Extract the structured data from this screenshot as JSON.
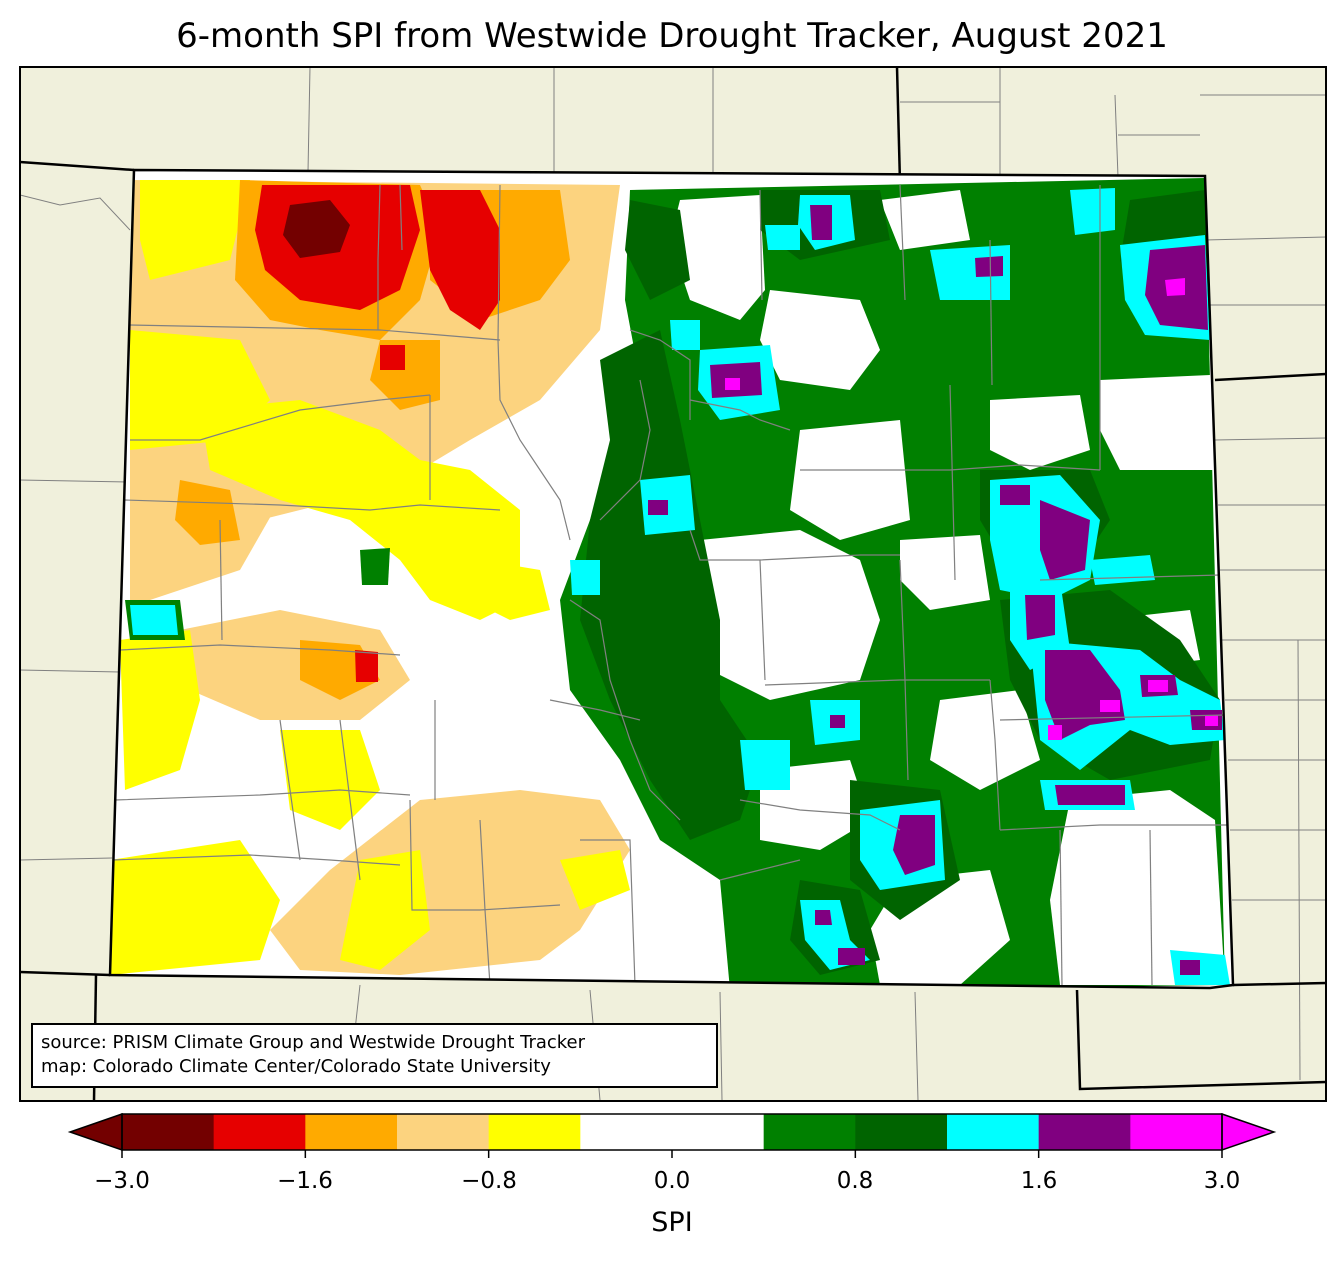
{
  "title": "6-month SPI from Westwide Drought Tracker, August 2021",
  "source": {
    "line1": "source: PRISM Climate Group and Westwide Drought Tracker",
    "line2": "map: Colorado Climate Center/Colorado State University"
  },
  "colorbar": {
    "label": "SPI",
    "tick_labels": [
      "−3.0",
      "−1.6",
      "−0.8",
      "0.0",
      "0.8",
      "1.6",
      "3.0"
    ],
    "bins": [
      {
        "color": "#730000"
      },
      {
        "color": "#e60000"
      },
      {
        "color": "#ffaa00"
      },
      {
        "color": "#fcd37f"
      },
      {
        "color": "#ffff00"
      },
      {
        "color": "#ffffff"
      },
      {
        "color": "#ffffff"
      },
      {
        "color": "#008000"
      },
      {
        "color": "#006400"
      },
      {
        "color": "#00ffff"
      },
      {
        "color": "#800080"
      },
      {
        "color": "#ff00ff"
      }
    ]
  },
  "colors": {
    "land_background": "#f0f0dc",
    "state_border": "#000000",
    "county_border": "#808080"
  }
}
